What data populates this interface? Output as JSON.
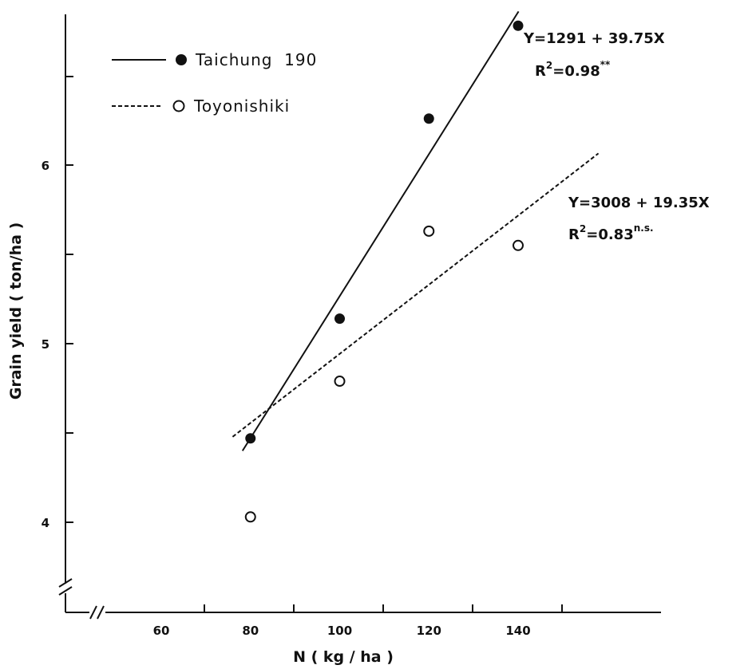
{
  "chart_data": {
    "type": "scatter",
    "title": "",
    "xlabel": "N ( kg ∕ ha )",
    "ylabel": "Grain yield ( ton/ha )",
    "xlim": [
      40,
      160
    ],
    "ylim": [
      3.7,
      6.8
    ],
    "x_ticks": [
      60,
      80,
      100,
      120,
      140
    ],
    "x_tick_labels": [
      "60",
      "80",
      "100",
      "120",
      "140"
    ],
    "y_ticks": [
      4,
      5,
      6
    ],
    "y_tick_labels": [
      "4",
      "5",
      "6"
    ],
    "axis_breaks": true,
    "grid": false,
    "legend_position": "top-left",
    "series": [
      {
        "name": "Taichung  190",
        "marker": "filled-circle",
        "line_style": "solid",
        "x": [
          80,
          100,
          120,
          140
        ],
        "y": [
          4.47,
          5.14,
          6.26,
          6.78
        ],
        "fit": {
          "intercept": 1291,
          "slope": 39.75,
          "x_range": [
            79,
            140
          ],
          "y_range": [
            4.4,
            6.86
          ]
        },
        "equation": {
          "lhs": "Y",
          "eq": "=",
          "rhs": "1291 + 39.75X",
          "r2_lhs": "R",
          "r2_exp": "2",
          "r2_rest": "=0.98",
          "sig": "**"
        }
      },
      {
        "name": "Toyonishiki",
        "marker": "open-circle",
        "line_style": "dashed",
        "x": [
          80,
          100,
          120,
          140
        ],
        "y": [
          4.03,
          4.79,
          5.63,
          5.55
        ],
        "fit": {
          "intercept": 3008,
          "slope": 19.35,
          "x_range": [
            76,
            158
          ]
        },
        "equation": {
          "lhs": "Y",
          "eq": "=",
          "rhs": "3008 + 19.35X",
          "r2_lhs": "R",
          "r2_exp": "2",
          "r2_rest": "=0.83",
          "sig": "n.s."
        }
      }
    ]
  }
}
